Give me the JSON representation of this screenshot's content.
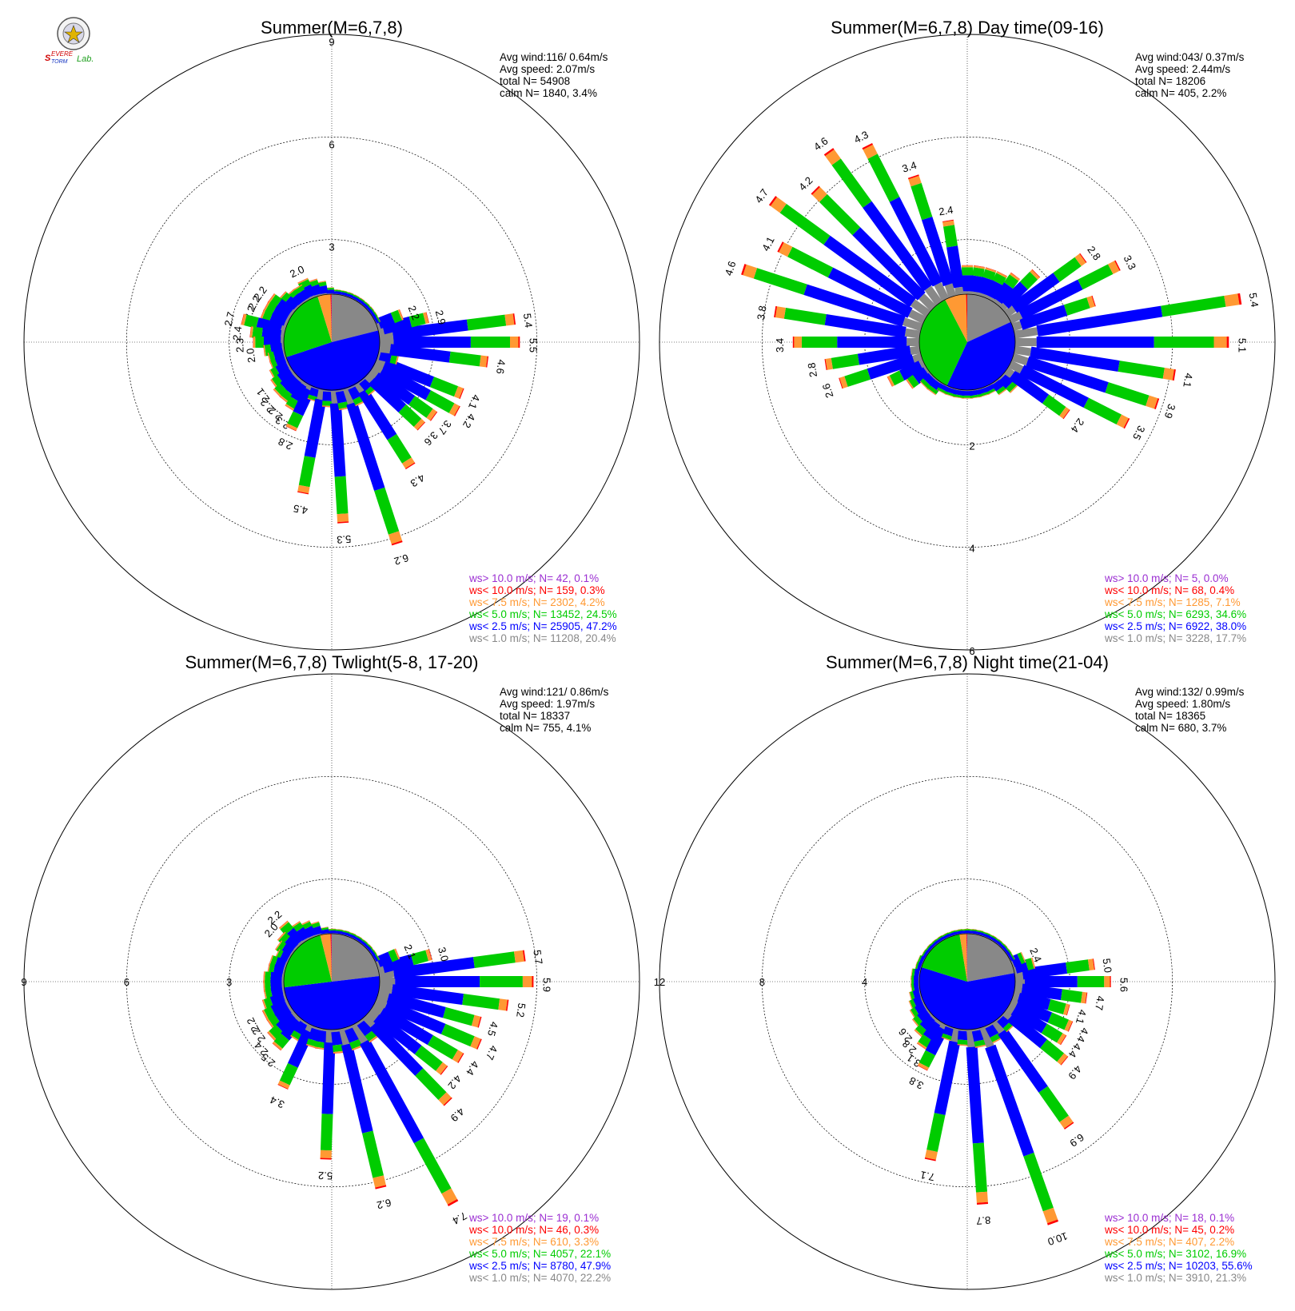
{
  "logo": {
    "text": "Severe Storm Lab."
  },
  "legend_labels": [
    "ws> 10.0 m/s; N=",
    "ws< 10.0 m/s; N=",
    "ws<  7.5 m/s; N=",
    "ws<  5.0 m/s; N=",
    "ws<  2.5 m/s; N=",
    "ws<  1.0 m/s; N="
  ],
  "chart_data": [
    {
      "type": "windrose",
      "title": "Summer(M=6,7,8)",
      "stats": [
        "Avg wind:116/ 0.64m/s",
        "Avg speed: 2.07m/s",
        "total N=      54908",
        "calm N=   1840,   3.4%"
      ],
      "rings": [
        3,
        6,
        9
      ],
      "ring_labels_shown": [
        "3",
        "6",
        "9"
      ],
      "legend_values": [
        "42,  0.1%",
        "159,  0.3%",
        "2302,  4.2%",
        "13452, 24.5%",
        "25905, 47.2%",
        "11208, 20.4%"
      ],
      "pie": [
        20.4,
        47.2,
        24.5,
        4.2,
        0.3,
        0.1
      ],
      "labeled": {
        "0": "5.5",
        "1": "5.4",
        "2": "2.9",
        "3": "2.2",
        "16": "2.0",
        "20": "2.2",
        "21": "2.2",
        "22": "2.2",
        "23": "2.7",
        "24": "2.4",
        "25": "2.3",
        "26": "2.0",
        "30": "2.1",
        "31": "2.2",
        "32": "2.2",
        "33": "2.3",
        "34": "2.8",
        "35": "",
        "36": "4.5",
        "37": "",
        "38": "5.3",
        "39": "",
        "40": "6.2",
        "41": "",
        "42": "4.3",
        "43": "",
        "44": "3.6",
        "45": "3.7",
        "46": "4.2",
        "47": "4.1",
        "48": "",
        "49": "4.6"
      },
      "sectors": [
        5.5,
        5.4,
        2.9,
        2.2,
        1.5,
        1.3,
        1.2,
        1.1,
        1.1,
        1.1,
        1.2,
        1.3,
        1.4,
        1.6,
        1.8,
        1.9,
        2.0,
        1.9,
        1.9,
        2.0,
        2.2,
        2.2,
        2.2,
        2.7,
        2.4,
        2.3,
        2.0,
        1.9,
        1.9,
        2.0,
        2.1,
        2.2,
        2.2,
        2.3,
        2.8,
        1.8,
        4.5,
        1.9,
        5.3,
        2.0,
        6.2,
        2.0,
        4.3,
        1.9,
        3.6,
        3.7,
        4.2,
        4.1,
        2.0,
        4.6
      ]
    },
    {
      "type": "windrose",
      "title": "Summer(M=6,7,8) Day time(09-16)",
      "stats": [
        "Avg wind:043/ 0.37m/s",
        "Avg speed: 2.44m/s",
        "total N=      18206",
        "calm N=    405,   2.2%"
      ],
      "rings": [
        2,
        4,
        6
      ],
      "ring_labels_shown": [
        "2",
        "4",
        "6"
      ],
      "legend_values": [
        "5,  0.0%",
        "68,  0.4%",
        "1285,  7.1%",
        "6293, 34.6%",
        "6922, 38.0%",
        "3228, 17.7%"
      ],
      "pie": [
        17.7,
        38.0,
        34.6,
        7.1,
        0.4,
        0.0
      ],
      "labeled": {
        "0": "5.1",
        "1": "5.4",
        "3": "3.3",
        "4": "2.8",
        "11": "2.4",
        "12": "3.4",
        "13": "4.3",
        "14": "4.6",
        "15": "4.2",
        "16": "4.7",
        "17": "4.1",
        "18": "4.6",
        "19": "3.8",
        "20": "3.4",
        "21": "2.8",
        "22": "2.6",
        "36": "2.4",
        "37": "3.5",
        "38": "3.9",
        "39": "4.1"
      },
      "sectors": [
        5.1,
        5.4,
        2.6,
        3.3,
        2.8,
        1.9,
        1.6,
        1.5,
        1.5,
        1.5,
        1.5,
        2.4,
        3.4,
        4.3,
        4.6,
        4.2,
        4.7,
        4.1,
        4.6,
        3.8,
        3.4,
        2.8,
        2.6,
        1.7,
        1.4,
        1.2,
        1.2,
        1.1,
        1.1,
        1.1,
        1.1,
        1.1,
        1.1,
        1.1,
        1.2,
        1.3,
        2.4,
        3.5,
        3.9,
        4.1
      ]
    },
    {
      "type": "windrose",
      "title": "Summer(M=6,7,8) Twlight(5-8, 17-20)",
      "stats": [
        "Avg wind:121/ 0.86m/s",
        "Avg speed: 1.97m/s",
        "total N=      18337",
        "calm N=    755,   4.1%"
      ],
      "rings": [
        3,
        6,
        9
      ],
      "ring_labels_shown": [
        "3",
        "6",
        "9"
      ],
      "legend_values": [
        "19,  0.1%",
        "46,  0.3%",
        "610,  3.3%",
        "4057, 22.1%",
        "8780, 47.9%",
        "4070, 22.2%"
      ],
      "pie": [
        22.2,
        47.9,
        22.1,
        3.3,
        0.3,
        0.1
      ],
      "labeled": {
        "0": "5.9",
        "1": "5.7",
        "2": "3.0",
        "3": "2.1",
        "17": "2.2",
        "18": "2.0",
        "27": "2.2",
        "28": "2.2",
        "29": "2.4",
        "30": "2.5",
        "32": "3.4",
        "35": "5.2",
        "37": "6.2",
        "39": "7.4",
        "41": "4.9",
        "42": "4.2",
        "43": "4.4",
        "44": "4.7",
        "45": "4.5",
        "46": "5.2"
      },
      "sectors": [
        5.9,
        5.7,
        3.0,
        2.1,
        1.5,
        1.4,
        1.3,
        1.3,
        1.3,
        1.3,
        1.3,
        1.3,
        1.4,
        1.6,
        1.8,
        1.9,
        2.0,
        2.2,
        2.0,
        1.9,
        1.8,
        1.9,
        1.9,
        2.0,
        2.0,
        2.0,
        2.1,
        2.2,
        2.2,
        2.4,
        2.5,
        2.0,
        3.4,
        2.0,
        2.0,
        5.2,
        2.1,
        6.2,
        2.1,
        7.4,
        2.1,
        4.9,
        4.2,
        4.4,
        4.7,
        4.5,
        5.2
      ]
    },
    {
      "type": "windrose",
      "title": "Summer(M=6,7,8) Night time(21-04)",
      "stats": [
        "Avg wind:132/ 0.99m/s",
        "Avg speed: 1.80m/s",
        "total N=      18365",
        "calm N=    680,   3.7%"
      ],
      "rings": [
        4,
        8,
        12
      ],
      "ring_labels_shown": [
        "4",
        "8",
        "12"
      ],
      "legend_values": [
        "18,  0.1%",
        "45,  0.2%",
        "407,  2.2%",
        "3102, 16.9%",
        "10203, 55.6%",
        "3910, 21.3%"
      ],
      "pie": [
        21.3,
        55.6,
        16.9,
        2.2,
        0.2,
        0.1
      ],
      "labeled": {
        "0": "5.6",
        "1": "5.0",
        "3": "2.4",
        "28": "2.6",
        "29": "2.8",
        "30": "3.1",
        "31": "3.8",
        "33": "7.1",
        "35": "8.7",
        "37": "10.0",
        "39": "6.9",
        "41": "4.9",
        "42": "4.4",
        "43": "4.4",
        "44": "4.1",
        "45": "4.7"
      },
      "sectors": [
        5.6,
        5.0,
        2.7,
        2.4,
        1.9,
        1.6,
        1.5,
        1.4,
        1.4,
        1.4,
        1.4,
        1.4,
        1.5,
        1.6,
        1.7,
        1.8,
        1.8,
        1.9,
        2.0,
        2.0,
        2.1,
        2.1,
        2.2,
        2.2,
        2.2,
        2.3,
        2.4,
        2.5,
        2.6,
        2.8,
        3.1,
        3.8,
        2.4,
        7.1,
        2.5,
        8.7,
        2.6,
        10.0,
        2.6,
        6.9,
        2.5,
        4.9,
        4.4,
        4.4,
        4.1,
        4.7
      ]
    }
  ],
  "colors": {
    "gt10": "#9b2fd2",
    "lt10": "#ff0000",
    "lt75": "#ff9933",
    "lt50": "#00cc00",
    "lt25": "#0000ff",
    "lt10c": "#888888",
    "calm": "#ffffff"
  }
}
